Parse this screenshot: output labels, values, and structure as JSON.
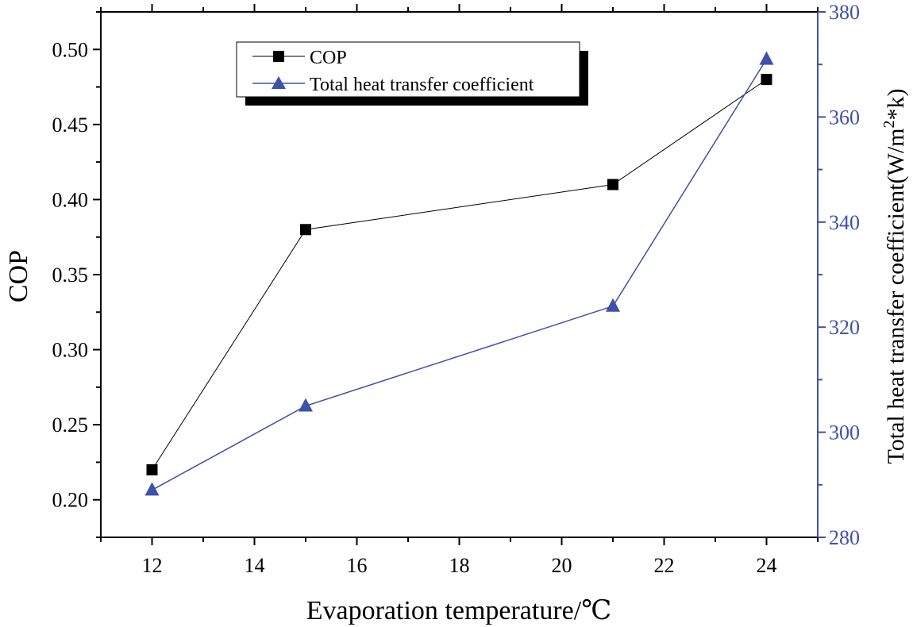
{
  "chart_data": {
    "type": "line",
    "x": [
      12,
      15,
      21,
      24
    ],
    "xlim": [
      11,
      25
    ],
    "xticks": [
      12,
      14,
      16,
      18,
      20,
      22,
      24
    ],
    "xlabel": "Evaporation temperature/℃",
    "ylabel_left": "COP",
    "ylim_left": [
      0.175,
      0.525
    ],
    "yticks_left": [
      "0.20",
      "0.25",
      "0.30",
      "0.35",
      "0.40",
      "0.45",
      "0.50"
    ],
    "ylabel_right_main": "Total heat transfer coefficient(W/m",
    "ylabel_right_sup": "2",
    "ylabel_right_tail": "*k)",
    "ylim_right": [
      280,
      380
    ],
    "yticks_right": [
      "280",
      "300",
      "320",
      "340",
      "360",
      "380"
    ],
    "legend_position": "top-left",
    "series": [
      {
        "name": "COP",
        "axis": "left",
        "marker": "square",
        "color": "#000000",
        "values": [
          0.22,
          0.38,
          0.41,
          0.48
        ]
      },
      {
        "name": "Total heat transfer coefficient",
        "axis": "right",
        "marker": "triangle",
        "color": "#3f51a8",
        "values": [
          289,
          305,
          324,
          371
        ]
      }
    ]
  }
}
